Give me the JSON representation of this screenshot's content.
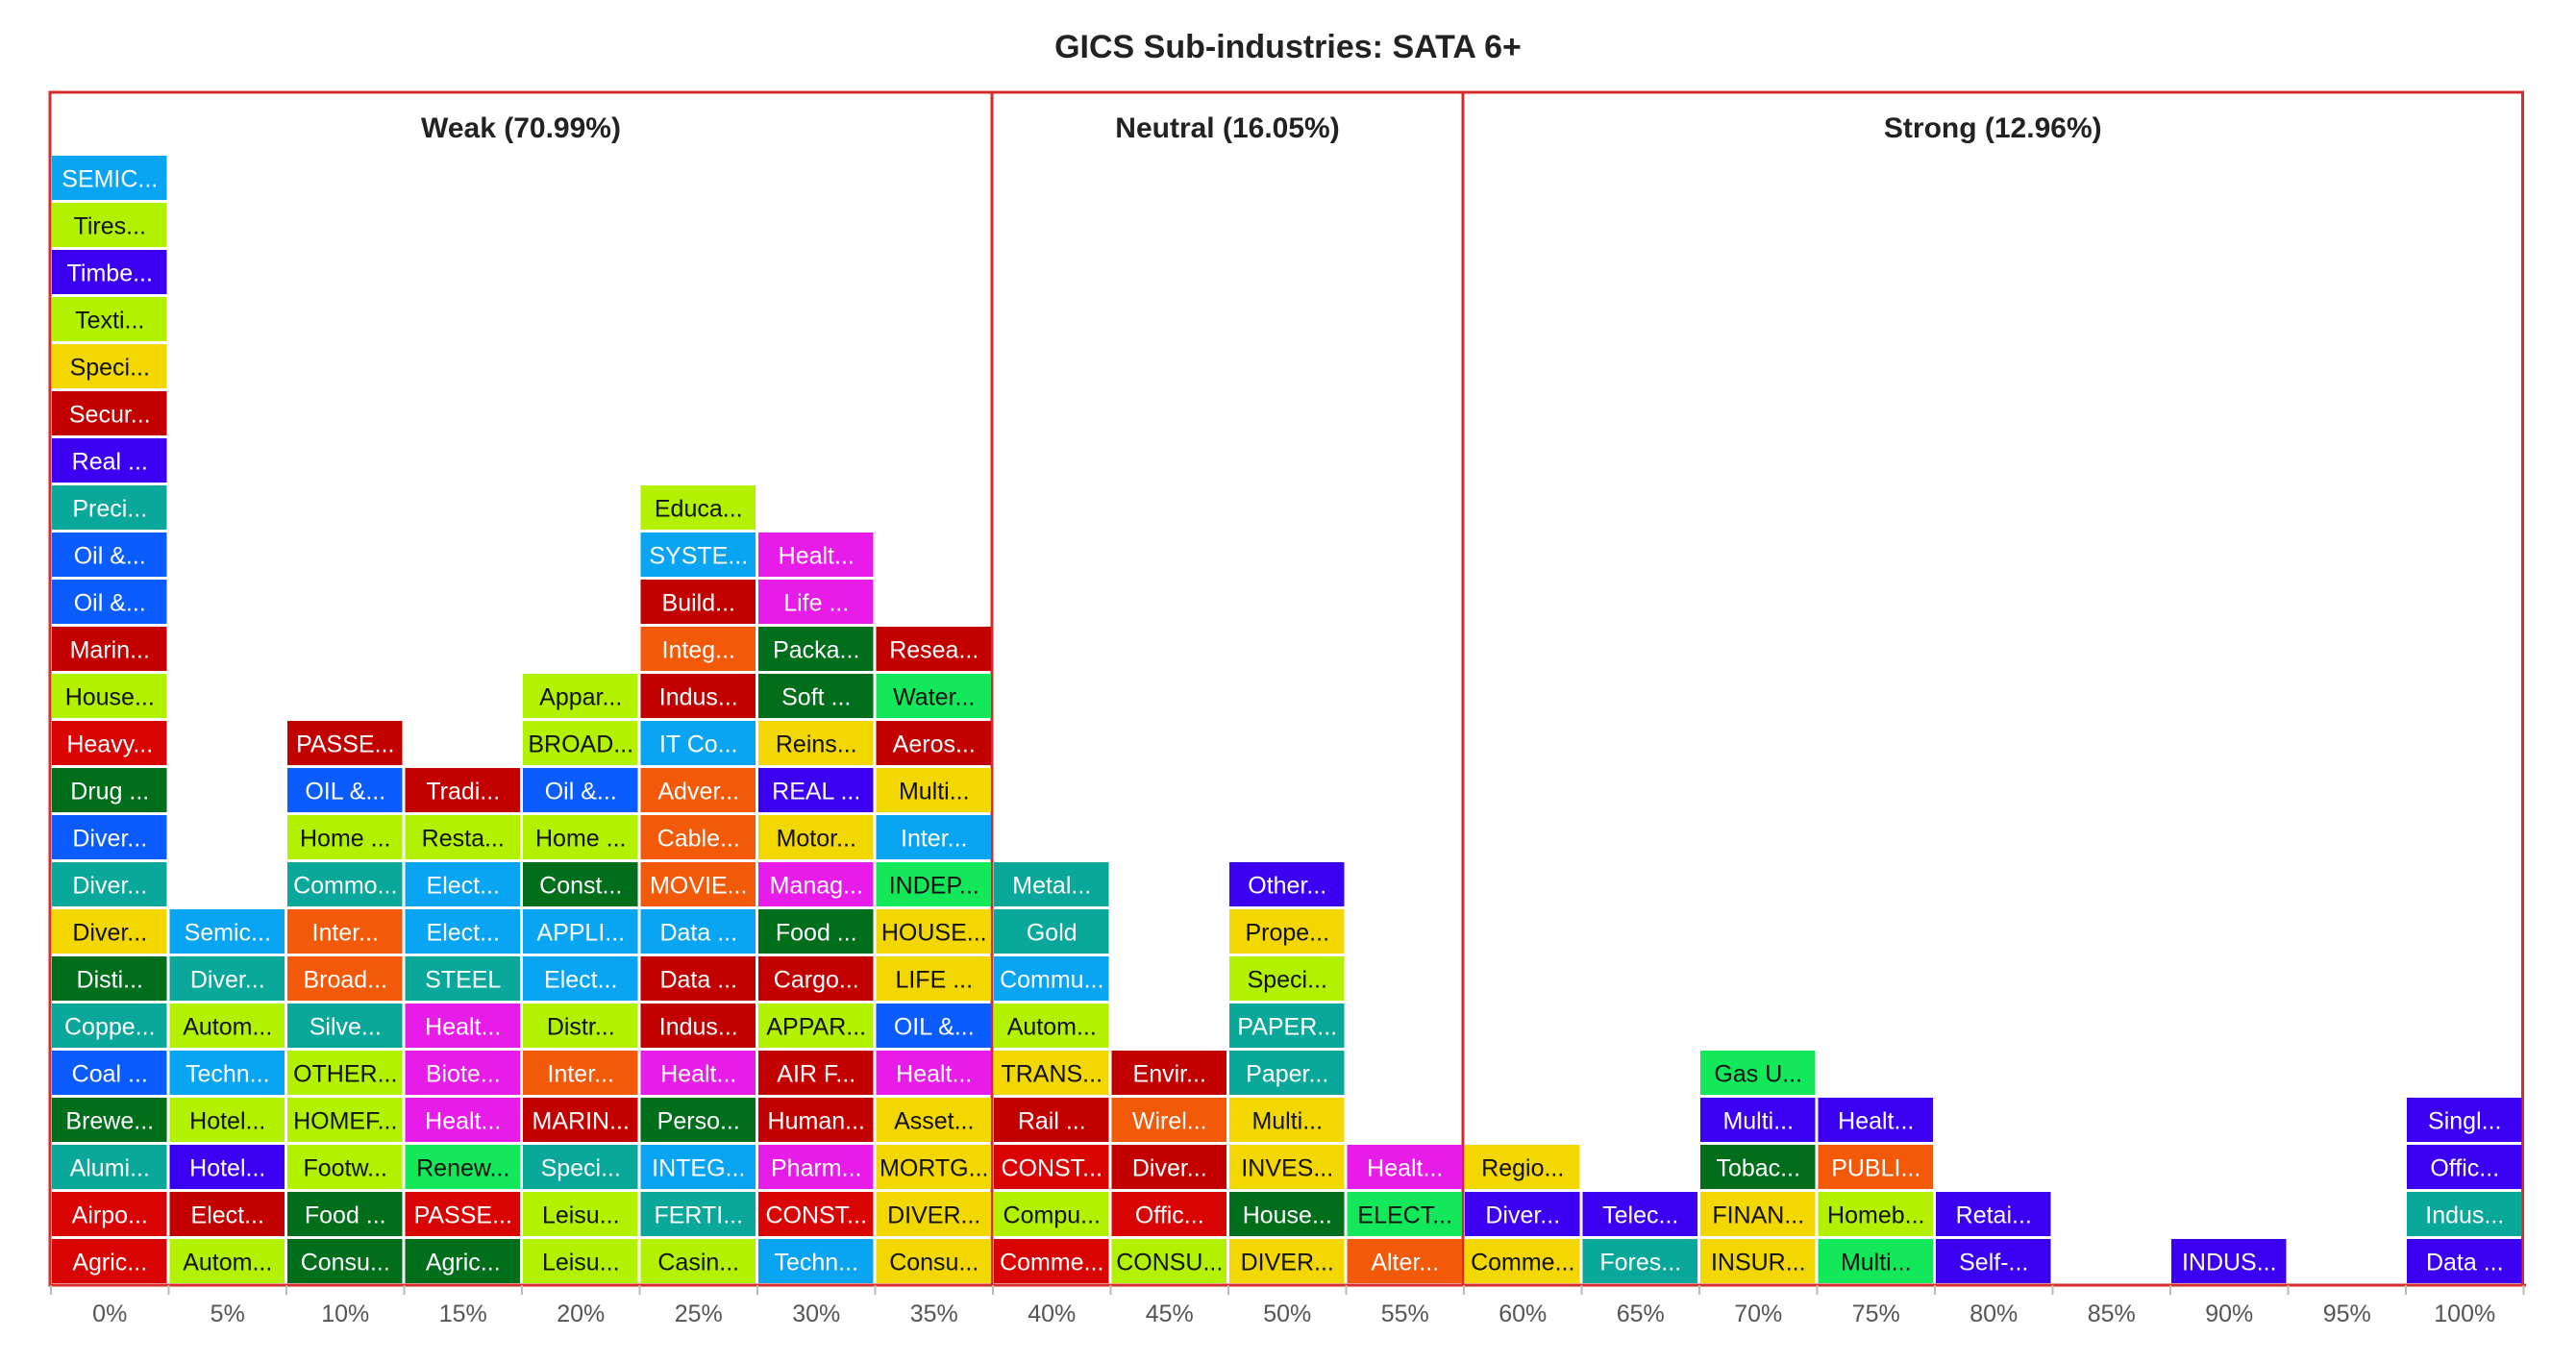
{
  "chart_data": {
    "type": "stacked-tile-histogram",
    "title": "GICS Sub-industries: SATA 6+",
    "x_ticks": [
      "0%",
      "5%",
      "10%",
      "15%",
      "20%",
      "25%",
      "30%",
      "35%",
      "40%",
      "45%",
      "50%",
      "55%",
      "60%",
      "65%",
      "70%",
      "75%",
      "80%",
      "85%",
      "90%",
      "95%",
      "100%"
    ],
    "zones": [
      {
        "label": "Weak (70.99%)",
        "from": 0,
        "to": 8,
        "color": "#d92b2b"
      },
      {
        "label": "Neutral (16.05%)",
        "from": 8,
        "to": 12,
        "color": "#d92b2b"
      },
      {
        "label": "Strong (12.96%)",
        "from": 12,
        "to": 21,
        "color": "#d92b2b"
      }
    ],
    "columns": [
      {
        "x": "0%",
        "items": [
          {
            "label": "Agric...",
            "color": "#d90404"
          },
          {
            "label": "Airpo...",
            "color": "#d90404"
          },
          {
            "label": "Alumi...",
            "color": "#0aa89a"
          },
          {
            "label": "Brewe...",
            "color": "#006e1b"
          },
          {
            "label": "Coal ...",
            "color": "#0a5cff"
          },
          {
            "label": "Coppe...",
            "color": "#0aa89a"
          },
          {
            "label": "Disti...",
            "color": "#006e1b"
          },
          {
            "label": "Diver...",
            "color": "#f2d700"
          },
          {
            "label": "Diver...",
            "color": "#0aa89a"
          },
          {
            "label": "Diver...",
            "color": "#0a5cff"
          },
          {
            "label": "Drug ...",
            "color": "#006e1b"
          },
          {
            "label": "Heavy...",
            "color": "#d90404"
          },
          {
            "label": "House...",
            "color": "#b2f200"
          },
          {
            "label": "Marin...",
            "color": "#c20000"
          },
          {
            "label": "Oil &...",
            "color": "#0a5cff"
          },
          {
            "label": "Oil &...",
            "color": "#0a5cff"
          },
          {
            "label": "Preci...",
            "color": "#0aa89a"
          },
          {
            "label": "Real ...",
            "color": "#3b00f2"
          },
          {
            "label": "Secur...",
            "color": "#c20000"
          },
          {
            "label": "Speci...",
            "color": "#f2d700"
          },
          {
            "label": "Texti...",
            "color": "#b2f200"
          },
          {
            "label": "Timbe...",
            "color": "#3b00f2"
          },
          {
            "label": "Tires...",
            "color": "#b2f200"
          },
          {
            "label": "SEMIC...",
            "color": "#09a4f2"
          }
        ]
      },
      {
        "x": "5%",
        "items": [
          {
            "label": "Autom...",
            "color": "#b2f200"
          },
          {
            "label": "Elect...",
            "color": "#c20000"
          },
          {
            "label": "Hotel...",
            "color": "#3b00f2"
          },
          {
            "label": "Hotel...",
            "color": "#b2f200"
          },
          {
            "label": "Techn...",
            "color": "#09a4f2"
          },
          {
            "label": "Autom...",
            "color": "#b2f200"
          },
          {
            "label": "Diver...",
            "color": "#0aa89a"
          },
          {
            "label": "Semic...",
            "color": "#09a4f2"
          }
        ]
      },
      {
        "x": "10%",
        "items": [
          {
            "label": "Consu...",
            "color": "#006e1b"
          },
          {
            "label": "Food ...",
            "color": "#006e1b"
          },
          {
            "label": "Footw...",
            "color": "#b2f200"
          },
          {
            "label": "HOMEF...",
            "color": "#b2f200"
          },
          {
            "label": "OTHER...",
            "color": "#b2f200"
          },
          {
            "label": "Silve...",
            "color": "#0aa89a"
          },
          {
            "label": "Broad...",
            "color": "#f25a0a"
          },
          {
            "label": "Inter...",
            "color": "#f25a0a"
          },
          {
            "label": "Commo...",
            "color": "#0aa89a"
          },
          {
            "label": "Home ...",
            "color": "#b2f200"
          },
          {
            "label": "OIL &...",
            "color": "#0a5cff"
          },
          {
            "label": "PASSE...",
            "color": "#c20000"
          }
        ]
      },
      {
        "x": "15%",
        "items": [
          {
            "label": "Agric...",
            "color": "#006e1b"
          },
          {
            "label": "PASSE...",
            "color": "#d90404"
          },
          {
            "label": "Renew...",
            "color": "#13e85b"
          },
          {
            "label": "Healt...",
            "color": "#e81ce8"
          },
          {
            "label": "Biote...",
            "color": "#e81ce8"
          },
          {
            "label": "Healt...",
            "color": "#e81ce8"
          },
          {
            "label": "STEEL",
            "color": "#0aa89a"
          },
          {
            "label": "Elect...",
            "color": "#09a4f2"
          },
          {
            "label": "Elect...",
            "color": "#09a4f2"
          },
          {
            "label": "Resta...",
            "color": "#b2f200"
          },
          {
            "label": "Tradi...",
            "color": "#c20000"
          }
        ]
      },
      {
        "x": "20%",
        "items": [
          {
            "label": "Leisu...",
            "color": "#b2f200"
          },
          {
            "label": "Leisu...",
            "color": "#b2f200"
          },
          {
            "label": "Speci...",
            "color": "#0aa89a"
          },
          {
            "label": "MARIN...",
            "color": "#c20000"
          },
          {
            "label": "Inter...",
            "color": "#f25a0a"
          },
          {
            "label": "Distr...",
            "color": "#b2f200"
          },
          {
            "label": "Elect...",
            "color": "#09a4f2"
          },
          {
            "label": "APPLI...",
            "color": "#09a4f2"
          },
          {
            "label": "Const...",
            "color": "#006e1b"
          },
          {
            "label": "Home ...",
            "color": "#b2f200"
          },
          {
            "label": "Oil &...",
            "color": "#0a5cff"
          },
          {
            "label": "BROAD...",
            "color": "#b2f200"
          },
          {
            "label": "Appar...",
            "color": "#b2f200"
          }
        ]
      },
      {
        "x": "25%",
        "items": [
          {
            "label": "Casin...",
            "color": "#b2f200"
          },
          {
            "label": "FERTI...",
            "color": "#0aa89a"
          },
          {
            "label": "INTEG...",
            "color": "#09a4f2"
          },
          {
            "label": "Perso...",
            "color": "#006e1b"
          },
          {
            "label": "Healt...",
            "color": "#e81ce8"
          },
          {
            "label": "Indus...",
            "color": "#c20000"
          },
          {
            "label": "Data ...",
            "color": "#c20000"
          },
          {
            "label": "Data ...",
            "color": "#09a4f2"
          },
          {
            "label": "MOVIE...",
            "color": "#f25a0a"
          },
          {
            "label": "Cable...",
            "color": "#f25a0a"
          },
          {
            "label": "Adver...",
            "color": "#f25a0a"
          },
          {
            "label": "IT Co...",
            "color": "#09a4f2"
          },
          {
            "label": "Indus...",
            "color": "#c20000"
          },
          {
            "label": "Integ...",
            "color": "#f25a0a"
          },
          {
            "label": "Build...",
            "color": "#c20000"
          },
          {
            "label": "SYSTE...",
            "color": "#09a4f2"
          },
          {
            "label": "Educa...",
            "color": "#b2f200"
          }
        ]
      },
      {
        "x": "30%",
        "items": [
          {
            "label": "Techn...",
            "color": "#09a4f2"
          },
          {
            "label": "CONST...",
            "color": "#d90404"
          },
          {
            "label": "Pharm...",
            "color": "#e81ce8"
          },
          {
            "label": "Human...",
            "color": "#c20000"
          },
          {
            "label": "AIR F...",
            "color": "#c20000"
          },
          {
            "label": "APPAR...",
            "color": "#b2f200"
          },
          {
            "label": "Cargo...",
            "color": "#c20000"
          },
          {
            "label": "Food ...",
            "color": "#006e1b"
          },
          {
            "label": "Manag...",
            "color": "#e81ce8"
          },
          {
            "label": "Motor...",
            "color": "#f2d700"
          },
          {
            "label": "REAL ...",
            "color": "#3b00f2"
          },
          {
            "label": "Reins...",
            "color": "#f2d700"
          },
          {
            "label": "Soft ...",
            "color": "#006e1b"
          },
          {
            "label": "Packa...",
            "color": "#006e1b"
          },
          {
            "label": "Life ...",
            "color": "#e81ce8"
          },
          {
            "label": "Healt...",
            "color": "#e81ce8"
          }
        ]
      },
      {
        "x": "35%",
        "items": [
          {
            "label": "Consu...",
            "color": "#f2d700"
          },
          {
            "label": "DIVER...",
            "color": "#f2d700"
          },
          {
            "label": "MORTG...",
            "color": "#f2d700"
          },
          {
            "label": "Asset...",
            "color": "#f2d700"
          },
          {
            "label": "Healt...",
            "color": "#e81ce8"
          },
          {
            "label": "OIL &...",
            "color": "#0a5cff"
          },
          {
            "label": "LIFE ...",
            "color": "#f2d700"
          },
          {
            "label": "HOUSE...",
            "color": "#f2d700"
          },
          {
            "label": "INDEP...",
            "color": "#13e85b"
          },
          {
            "label": "Inter...",
            "color": "#09a4f2"
          },
          {
            "label": "Multi...",
            "color": "#f2d700"
          },
          {
            "label": "Aeros...",
            "color": "#c20000"
          },
          {
            "label": "Water...",
            "color": "#13e85b"
          },
          {
            "label": "Resea...",
            "color": "#c20000"
          }
        ]
      },
      {
        "x": "40%",
        "items": [
          {
            "label": "Comme...",
            "color": "#d90404"
          },
          {
            "label": "Compu...",
            "color": "#b2f200"
          },
          {
            "label": "CONST...",
            "color": "#d90404"
          },
          {
            "label": "Rail ...",
            "color": "#c20000"
          },
          {
            "label": "TRANS...",
            "color": "#f2d700"
          },
          {
            "label": "Autom...",
            "color": "#b2f200"
          },
          {
            "label": "Commu...",
            "color": "#09a4f2"
          },
          {
            "label": "Gold",
            "color": "#0aa89a"
          },
          {
            "label": "Metal...",
            "color": "#0aa89a"
          }
        ]
      },
      {
        "x": "45%",
        "items": [
          {
            "label": "CONSU...",
            "color": "#b2f200"
          },
          {
            "label": "Offic...",
            "color": "#d90404"
          },
          {
            "label": "Diver...",
            "color": "#c20000"
          },
          {
            "label": "Wirel...",
            "color": "#f25a0a"
          },
          {
            "label": "Envir...",
            "color": "#c20000"
          }
        ]
      },
      {
        "x": "50%",
        "items": [
          {
            "label": "DIVER...",
            "color": "#f2d700"
          },
          {
            "label": "House...",
            "color": "#006e1b"
          },
          {
            "label": "INVES...",
            "color": "#f2d700"
          },
          {
            "label": "Multi...",
            "color": "#f2d700"
          },
          {
            "label": "Paper...",
            "color": "#0aa89a"
          },
          {
            "label": "PAPER...",
            "color": "#0aa89a"
          },
          {
            "label": "Speci...",
            "color": "#b2f200"
          },
          {
            "label": "Prope...",
            "color": "#f2d700"
          },
          {
            "label": "Other...",
            "color": "#3b00f2"
          }
        ]
      },
      {
        "x": "55%",
        "items": [
          {
            "label": "Alter...",
            "color": "#f25a0a"
          },
          {
            "label": "ELECT...",
            "color": "#13e85b"
          },
          {
            "label": "Healt...",
            "color": "#e81ce8"
          }
        ]
      },
      {
        "x": "60%",
        "items": [
          {
            "label": "Comme...",
            "color": "#f2d700"
          },
          {
            "label": "Diver...",
            "color": "#3b00f2"
          },
          {
            "label": "Regio...",
            "color": "#f2d700"
          }
        ]
      },
      {
        "x": "65%",
        "items": [
          {
            "label": "Fores...",
            "color": "#0aa89a"
          },
          {
            "label": "Telec...",
            "color": "#3b00f2"
          }
        ]
      },
      {
        "x": "70%",
        "items": [
          {
            "label": "INSUR...",
            "color": "#f2d700"
          },
          {
            "label": "FINAN...",
            "color": "#f2d700"
          },
          {
            "label": "Tobac...",
            "color": "#006e1b"
          },
          {
            "label": "Multi...",
            "color": "#3b00f2"
          },
          {
            "label": "Gas U...",
            "color": "#13e85b"
          }
        ]
      },
      {
        "x": "75%",
        "items": [
          {
            "label": "Multi...",
            "color": "#13e85b"
          },
          {
            "label": "Homeb...",
            "color": "#b2f200"
          },
          {
            "label": "PUBLI...",
            "color": "#f25a0a"
          },
          {
            "label": "Healt...",
            "color": "#3b00f2"
          }
        ]
      },
      {
        "x": "80%",
        "items": [
          {
            "label": "Self-...",
            "color": "#3b00f2"
          },
          {
            "label": "Retai...",
            "color": "#3b00f2"
          }
        ]
      },
      {
        "x": "85%",
        "items": []
      },
      {
        "x": "90%",
        "items": [
          {
            "label": "INDUS...",
            "color": "#3b00f2"
          }
        ]
      },
      {
        "x": "95%",
        "items": []
      },
      {
        "x": "100%",
        "items": [
          {
            "label": "Data ...",
            "color": "#3b00f2"
          },
          {
            "label": "Indus...",
            "color": "#0aa89a"
          },
          {
            "label": "Offic...",
            "color": "#3b00f2"
          },
          {
            "label": "Singl...",
            "color": "#3b00f2"
          }
        ]
      }
    ]
  }
}
